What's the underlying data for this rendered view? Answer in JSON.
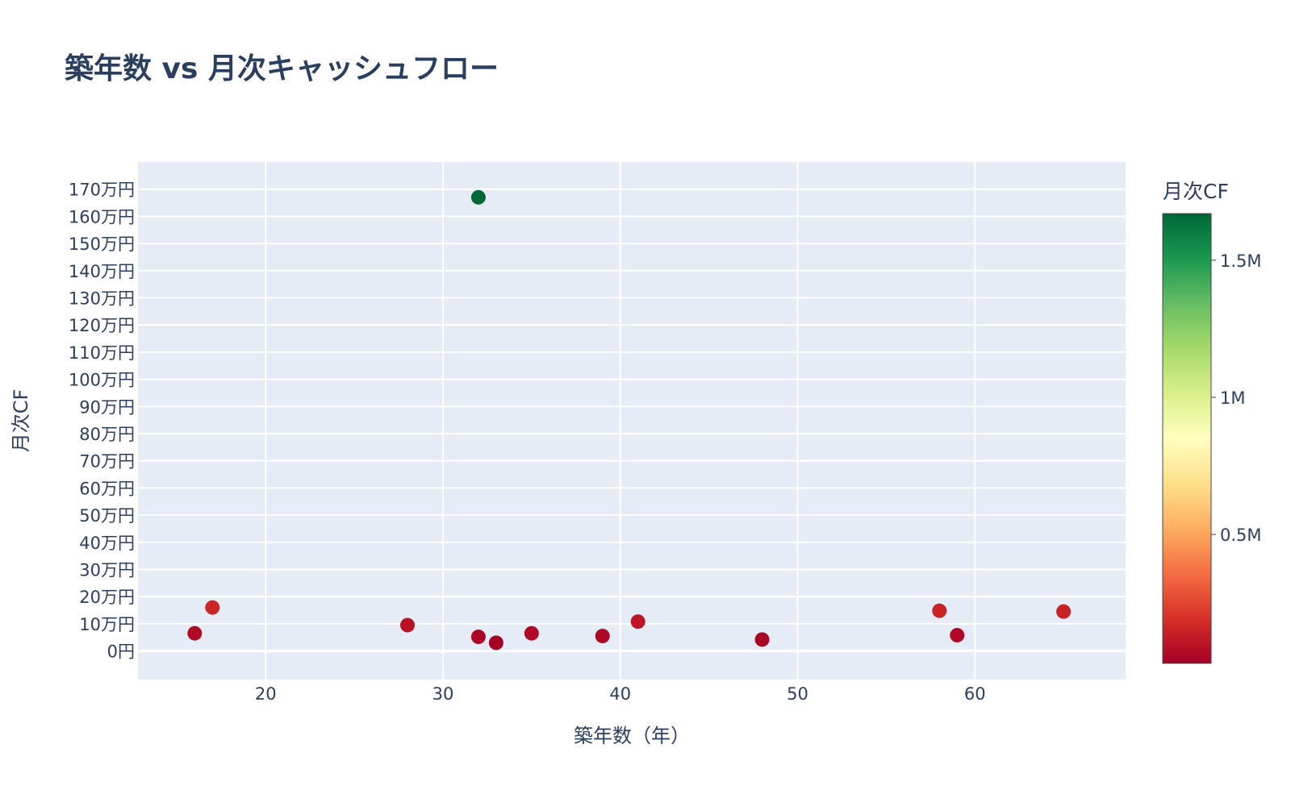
{
  "chart_data": {
    "type": "scatter",
    "title": "築年数 vs 月次キャッシュフロー",
    "xlabel": "築年数（年）",
    "ylabel": "月次CF",
    "xlim": [
      12.8,
      68.5
    ],
    "ylim": [
      -105000,
      1800000
    ],
    "x_ticks": [
      20,
      30,
      40,
      50,
      60
    ],
    "x_tick_labels": [
      "20",
      "30",
      "40",
      "50",
      "60"
    ],
    "y_ticks": [
      0,
      100000,
      200000,
      300000,
      400000,
      500000,
      600000,
      700000,
      800000,
      900000,
      1000000,
      1100000,
      1200000,
      1300000,
      1400000,
      1500000,
      1600000,
      1700000
    ],
    "y_tick_labels": [
      "0円",
      "10万円",
      "20万円",
      "30万円",
      "40万円",
      "50万円",
      "60万円",
      "70万円",
      "80万円",
      "90万円",
      "100万円",
      "110万円",
      "120万円",
      "130万円",
      "140万円",
      "150万円",
      "160万円",
      "170万円"
    ],
    "grid": true,
    "points": [
      {
        "x": 16,
        "y": 65000
      },
      {
        "x": 17,
        "y": 160000
      },
      {
        "x": 28,
        "y": 95000
      },
      {
        "x": 32,
        "y": 1670000
      },
      {
        "x": 32,
        "y": 52000
      },
      {
        "x": 33,
        "y": 30000
      },
      {
        "x": 35,
        "y": 65000
      },
      {
        "x": 39,
        "y": 55000
      },
      {
        "x": 41,
        "y": 108000
      },
      {
        "x": 48,
        "y": 42000
      },
      {
        "x": 58,
        "y": 148000
      },
      {
        "x": 59,
        "y": 58000
      },
      {
        "x": 65,
        "y": 145000
      }
    ],
    "colorbar": {
      "title": "月次CF",
      "colorscale": "RdYlGn",
      "cmin": 30000,
      "cmax": 1670000,
      "ticks": [
        500000,
        1000000,
        1500000
      ],
      "tick_labels": [
        "0.5M",
        "1M",
        "1.5M"
      ]
    },
    "colors": {
      "plot_bg": "#e5ecf6",
      "grid": "#ffffff",
      "text": "#2a3f5f",
      "scale": [
        "#a50026",
        "#d73027",
        "#f46d43",
        "#fdae61",
        "#fee08b",
        "#ffffbf",
        "#d9ef8b",
        "#a6d96a",
        "#66bd63",
        "#1a9850",
        "#006837"
      ]
    }
  }
}
